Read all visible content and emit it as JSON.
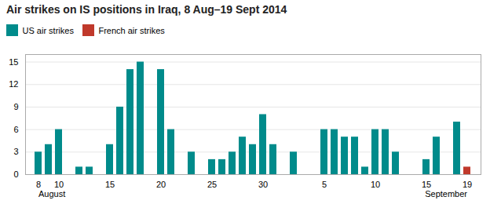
{
  "chart_data": {
    "type": "bar",
    "title": "Air strikes on IS positions in Iraq, 8 Aug–19 Sept 2014",
    "categories": [
      "8",
      null,
      "10",
      null,
      null,
      null,
      null,
      "15",
      null,
      null,
      null,
      null,
      "20",
      null,
      null,
      null,
      null,
      "25",
      null,
      null,
      null,
      null,
      "30",
      null,
      null,
      null,
      null,
      null,
      "5",
      null,
      null,
      null,
      null,
      "10",
      null,
      null,
      null,
      null,
      "15",
      null,
      null,
      null,
      "19"
    ],
    "series": [
      {
        "name": "US air strikes",
        "color": "#008b8b",
        "values": [
          3,
          4,
          6,
          0,
          1,
          1,
          0,
          4,
          9,
          14,
          15,
          0,
          14,
          6,
          0,
          3,
          0,
          2,
          2,
          3,
          5,
          4,
          8,
          4,
          0,
          3,
          0,
          0,
          6,
          6,
          5,
          5,
          1,
          6,
          6,
          3,
          0,
          0,
          2,
          5,
          0,
          7,
          0
        ]
      },
      {
        "name": "French air strikes",
        "color": "#c0392b",
        "values": [
          0,
          0,
          0,
          0,
          0,
          0,
          0,
          0,
          0,
          0,
          0,
          0,
          0,
          0,
          0,
          0,
          0,
          0,
          0,
          0,
          0,
          0,
          0,
          0,
          0,
          0,
          0,
          0,
          0,
          0,
          0,
          0,
          0,
          0,
          0,
          0,
          0,
          0,
          0,
          0,
          0,
          0,
          1
        ]
      }
    ],
    "ylim": [
      0,
      16
    ],
    "yticks": [
      0,
      3,
      6,
      9,
      12,
      15
    ],
    "grid": true,
    "legend": "upper left",
    "stacked": false,
    "annotations": [
      "August",
      "September"
    ]
  }
}
